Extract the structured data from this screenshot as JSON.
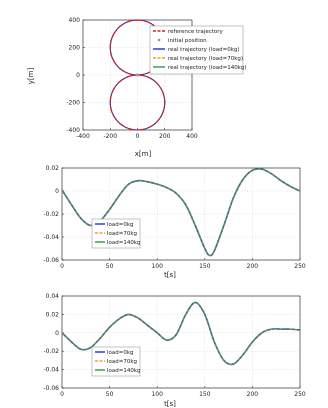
{
  "chart_data": [
    {
      "type": "line",
      "xlabel": "x[m]",
      "ylabel": "y[m]",
      "xlim": [
        -400,
        400
      ],
      "ylim": [
        -400,
        400
      ],
      "xticks": [
        -400,
        -200,
        0,
        200,
        400
      ],
      "yticks": [
        -400,
        -200,
        0,
        200,
        400
      ],
      "grid": true,
      "legend_position": "right",
      "shape": "figure-eight: two circles of radius 200 centred at (0, 200) and (0, -200)",
      "series": [
        {
          "name": "reference trajectory",
          "color": "#d62020",
          "style": "dash-dot"
        },
        {
          "name": "initial position",
          "color": "#9a9a9a",
          "style": "marker"
        },
        {
          "name": "real trajectory (load=0kg)",
          "color": "#1f2fd8",
          "style": "solid"
        },
        {
          "name": "real trajectory (load=70kg)",
          "color": "#f0a020",
          "style": "dashed"
        },
        {
          "name": "real trajectory (load=140kg)",
          "color": "#2e9a4a",
          "style": "solid"
        }
      ]
    },
    {
      "type": "line",
      "xlabel": "t[s]",
      "ylabel": "",
      "xlim": [
        0,
        250
      ],
      "ylim": [
        -0.06,
        0.02
      ],
      "xticks": [
        0,
        50,
        100,
        150,
        200,
        250
      ],
      "yticks": [
        0.02,
        0,
        -0.02,
        -0.04,
        -0.06
      ],
      "grid": true,
      "legend_position": "bottom-left",
      "x": [
        0,
        10,
        20,
        30,
        40,
        50,
        60,
        70,
        80,
        90,
        100,
        110,
        120,
        130,
        140,
        150,
        155,
        160,
        170,
        180,
        190,
        200,
        210,
        220,
        230,
        240,
        250
      ],
      "series": [
        {
          "name": "load=0kg",
          "color": "#1f2fd8",
          "values": [
            0.001,
            -0.012,
            -0.024,
            -0.03,
            -0.026,
            -0.016,
            -0.004,
            0.006,
            0.009,
            0.008,
            0.006,
            0.003,
            -0.002,
            -0.012,
            -0.03,
            -0.05,
            -0.056,
            -0.052,
            -0.03,
            -0.006,
            0.01,
            0.018,
            0.019,
            0.015,
            0.009,
            0.004,
            0.0
          ]
        },
        {
          "name": "load=70kg",
          "color": "#f0a020",
          "values": [
            0.001,
            -0.012,
            -0.024,
            -0.03,
            -0.026,
            -0.016,
            -0.004,
            0.006,
            0.009,
            0.008,
            0.006,
            0.003,
            -0.002,
            -0.012,
            -0.03,
            -0.05,
            -0.056,
            -0.052,
            -0.03,
            -0.006,
            0.01,
            0.018,
            0.019,
            0.015,
            0.009,
            0.004,
            0.0
          ]
        },
        {
          "name": "load=140kg",
          "color": "#2e9a4a",
          "values": [
            0.001,
            -0.012,
            -0.024,
            -0.03,
            -0.026,
            -0.016,
            -0.004,
            0.006,
            0.009,
            0.008,
            0.006,
            0.003,
            -0.002,
            -0.012,
            -0.03,
            -0.05,
            -0.056,
            -0.052,
            -0.03,
            -0.006,
            0.01,
            0.018,
            0.019,
            0.015,
            0.009,
            0.004,
            0.0
          ]
        }
      ]
    },
    {
      "type": "line",
      "xlabel": "t[s]",
      "ylabel": "",
      "xlim": [
        0,
        250
      ],
      "ylim": [
        -0.06,
        0.04
      ],
      "xticks": [
        0,
        50,
        100,
        150,
        200,
        250
      ],
      "yticks": [
        0.04,
        0.02,
        0,
        -0.02,
        -0.04,
        -0.06
      ],
      "grid": true,
      "legend_position": "bottom-left",
      "x": [
        0,
        10,
        20,
        30,
        40,
        50,
        60,
        70,
        80,
        90,
        100,
        110,
        120,
        130,
        140,
        150,
        160,
        170,
        180,
        190,
        200,
        210,
        220,
        230,
        240,
        250
      ],
      "series": [
        {
          "name": "load=0kg",
          "color": "#1f2fd8",
          "values": [
            0.0,
            -0.01,
            -0.018,
            -0.016,
            -0.006,
            0.006,
            0.015,
            0.02,
            0.016,
            0.008,
            0.0,
            -0.008,
            -0.002,
            0.02,
            0.033,
            0.02,
            -0.01,
            -0.03,
            -0.034,
            -0.024,
            -0.01,
            0.0,
            0.004,
            0.004,
            0.004,
            0.003
          ]
        },
        {
          "name": "load=70kg",
          "color": "#f0a020",
          "values": [
            0.0,
            -0.01,
            -0.018,
            -0.016,
            -0.006,
            0.006,
            0.015,
            0.02,
            0.016,
            0.008,
            0.0,
            -0.008,
            -0.002,
            0.02,
            0.033,
            0.02,
            -0.01,
            -0.03,
            -0.034,
            -0.024,
            -0.01,
            0.0,
            0.004,
            0.004,
            0.004,
            0.003
          ]
        },
        {
          "name": "load=140kg",
          "color": "#2e9a4a",
          "values": [
            0.0,
            -0.01,
            -0.018,
            -0.016,
            -0.006,
            0.006,
            0.015,
            0.02,
            0.016,
            0.008,
            0.0,
            -0.008,
            -0.002,
            0.02,
            0.033,
            0.02,
            -0.01,
            -0.03,
            -0.034,
            -0.024,
            -0.01,
            0.0,
            0.004,
            0.004,
            0.004,
            0.003
          ]
        }
      ]
    }
  ]
}
